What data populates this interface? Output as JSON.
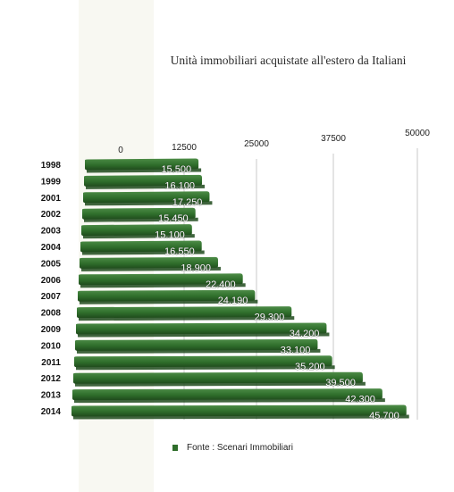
{
  "chart_data": {
    "type": "bar",
    "orientation": "horizontal",
    "title": "Unità immobiliari acquistate all'estero da Italiani",
    "categories": [
      "1998",
      "1999",
      "2001",
      "2002",
      "2003",
      "2004",
      "2005",
      "2006",
      "2007",
      "2008",
      "2009",
      "2010",
      "2011",
      "2012",
      "2013",
      "2014"
    ],
    "values": [
      15500,
      16100,
      17250,
      15450,
      15100,
      16550,
      18900,
      22400,
      24190,
      29300,
      34200,
      33100,
      35200,
      39500,
      42300,
      45700
    ],
    "value_labels": [
      "15.500",
      "16.100",
      "17.250",
      "15.450",
      "15.100",
      "16.550",
      "18.900",
      "22.400",
      "24.190",
      "29.300",
      "34.200",
      "33.100",
      "35.200",
      "39.500",
      "42.300",
      "45.700"
    ],
    "x_ticks": [
      0,
      12500,
      25000,
      37500,
      50000
    ],
    "x_tick_labels": [
      "0",
      "12500",
      "25000",
      "37500",
      "50000"
    ],
    "xlim": [
      0,
      50000
    ],
    "grid": true,
    "legend": "bottom-center",
    "colors": {
      "bar": "#2f6e2b",
      "bar_top": "#4d8c47",
      "bar_shadow": "#1f4a1c",
      "grid": "#c8c8c8"
    }
  },
  "legend_label": "Fonte : Scenari  Immobiliari"
}
